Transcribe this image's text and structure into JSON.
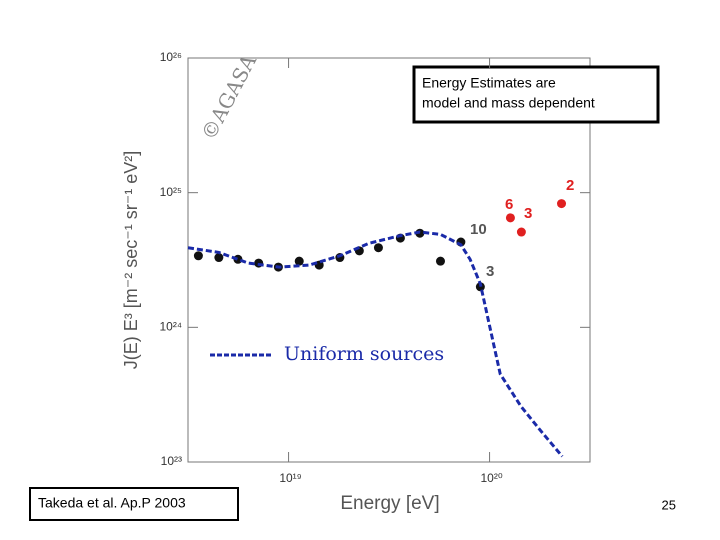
{
  "chart_data": {
    "type": "scatter",
    "xlabel": "Energy [eV]",
    "ylabel": "J(E) E³ [m⁻² sec⁻¹ sr⁻¹ eV²]",
    "watermark": "©AGASA",
    "xscale": "log",
    "yscale": "log",
    "xlim": [
      3.16e+18,
      3.16e+20
    ],
    "ylim": [
      1e+23,
      1e+26
    ],
    "xticks": [
      {
        "value": 1e+19,
        "label": "10¹⁹"
      },
      {
        "value": 1e+20,
        "label": "10²⁰"
      }
    ],
    "yticks": [
      {
        "value": 1e+23,
        "label": "10²³"
      },
      {
        "value": 1e+24,
        "label": "10²⁴"
      },
      {
        "value": 1e+25,
        "label": "10²⁵"
      },
      {
        "value": 1e+26,
        "label": "10²⁶"
      }
    ],
    "series": [
      {
        "color": "#111111",
        "style": "markers",
        "x": [
          3.56e+18,
          4.5e+18,
          5.6e+18,
          7.1e+18,
          8.9e+18,
          1.13e+19,
          1.42e+19,
          1.8e+19,
          2.25e+19,
          2.8e+19,
          3.6e+19,
          4.5e+19,
          5.7e+19,
          7.2e+19,
          9e+19
        ],
        "values": [
          3.4e+24,
          3.3e+24,
          3.2e+24,
          3e+24,
          2.8e+24,
          3.1e+24,
          2.9e+24,
          3.3e+24,
          3.7e+24,
          3.9e+24,
          4.6e+24,
          5e+24,
          3.1e+24,
          4.3e+24,
          2e+24
        ]
      },
      {
        "color": "#e02020",
        "style": "markers",
        "x": [
          1.27e+20,
          1.44e+20,
          2.28e+20
        ],
        "values": [
          6.5e+24,
          5.1e+24,
          8.3e+24
        ]
      },
      {
        "name": "Uniform sources",
        "color": "#1a2aa8",
        "style": "dashed",
        "x": [
          3.16e+18,
          4.5e+18,
          6.3e+18,
          9e+18,
          1.27e+19,
          1.8e+19,
          2.5e+19,
          3.6e+19,
          4.5e+19,
          5.7e+19,
          7.2e+19,
          8e+19,
          9e+19,
          1.01e+20,
          1.13e+20,
          1.43e+20,
          1.8e+20,
          2.3e+20
        ],
        "values": [
          3.9e+24,
          3.6e+24,
          3e+24,
          2.8e+24,
          2.9e+24,
          3.4e+24,
          4.2e+24,
          4.8e+24,
          5.1e+24,
          4.9e+24,
          4.1e+24,
          3.2e+24,
          2.1e+24,
          9.6e+23,
          4.5e+23,
          2.6e+23,
          1.7e+23,
          1.1e+23
        ]
      }
    ],
    "annotations": [
      "10",
      "3",
      "6",
      "3",
      "2"
    ]
  },
  "slide": {
    "note": [
      "Energy Estimates are",
      "model and mass dependent"
    ],
    "citation": "Takeda et al. Ap.P 2003",
    "page_number": "25"
  }
}
